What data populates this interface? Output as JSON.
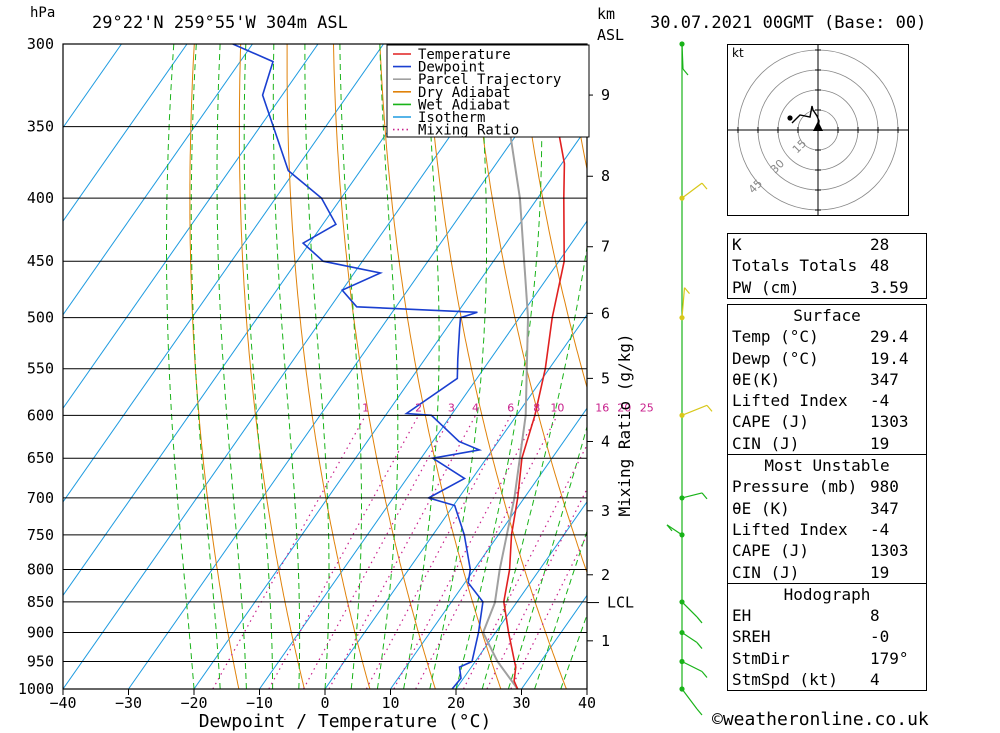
{
  "header": {
    "pressure_unit": "hPa",
    "location": "29°22'N 259°55'W 304m ASL",
    "height_unit_km": "km",
    "height_unit_asl": "ASL",
    "datetime": "30.07.2021 00GMT (Base: 00)"
  },
  "chart_data": {
    "type": "line",
    "subtype": "skew-T log-P",
    "xlabel": "Dewpoint / Temperature (°C)",
    "ylabel_right": "Mixing Ratio (g/kg)",
    "x_ticks": [
      -40,
      -30,
      -20,
      -10,
      0,
      10,
      20,
      30,
      40
    ],
    "y_ticks": [
      300,
      350,
      400,
      450,
      500,
      550,
      600,
      650,
      700,
      750,
      800,
      850,
      900,
      950,
      1000
    ],
    "xlim": [
      -40,
      40
    ],
    "ylim": [
      1000,
      300
    ],
    "y_scale": "log",
    "km_ticks": [
      {
        "label": "1",
        "p": 914
      },
      {
        "label": "2",
        "p": 808
      },
      {
        "label": "3",
        "p": 717
      },
      {
        "label": "4",
        "p": 630
      },
      {
        "label": "5",
        "p": 560
      },
      {
        "label": "6",
        "p": 496
      },
      {
        "label": "7",
        "p": 438
      },
      {
        "label": "8",
        "p": 384
      },
      {
        "label": "9",
        "p": 330
      }
    ],
    "lcl": {
      "label": "LCL",
      "p": 851
    },
    "mixing_ratio_labels": [
      "1",
      "2",
      "3",
      "4",
      "6",
      "8",
      "10",
      "16",
      "20",
      "25"
    ],
    "mixing_ratio_values": [
      1,
      2,
      3,
      4,
      6,
      8,
      10,
      16,
      20,
      25
    ],
    "legend": [
      "Temperature",
      "Dewpoint",
      "Parcel Trajectory",
      "Dry Adiabat",
      "Wet Adiabat",
      "Isotherm",
      "Mixing Ratio"
    ],
    "legend_position": "top-right",
    "colors": {
      "temperature": "#e02020",
      "dewpoint": "#1a3fd0",
      "parcel": "#a0a0a0",
      "dry_adiabat": "#e0820a",
      "wet_adiabat": "#19b319",
      "isotherm": "#1e9be0",
      "mixing_ratio": "#c8208c"
    },
    "series": [
      {
        "name": "Temperature",
        "points": [
          [
            1000,
            29.4
          ],
          [
            985,
            28.0
          ],
          [
            960,
            26.8
          ],
          [
            950,
            26.0
          ],
          [
            900,
            22.0
          ],
          [
            850,
            18.0
          ],
          [
            800,
            15.4
          ],
          [
            750,
            12.0
          ],
          [
            700,
            9.0
          ],
          [
            650,
            5.4
          ],
          [
            600,
            2.8
          ],
          [
            550,
            -0.6
          ],
          [
            500,
            -5.0
          ],
          [
            450,
            -9.2
          ],
          [
            400,
            -16.0
          ],
          [
            375,
            -19.6
          ],
          [
            350,
            -24.6
          ],
          [
            300,
            -35.0
          ]
        ]
      },
      {
        "name": "Dewpoint",
        "points": [
          [
            1000,
            19.4
          ],
          [
            980,
            19.6
          ],
          [
            960,
            18.2
          ],
          [
            950,
            19.5
          ],
          [
            900,
            17.4
          ],
          [
            850,
            14.8
          ],
          [
            820,
            10.5
          ],
          [
            800,
            9.4
          ],
          [
            750,
            4.8
          ],
          [
            710,
            0.2
          ],
          [
            700,
            -4.6
          ],
          [
            675,
            -1.2
          ],
          [
            650,
            -8.2
          ],
          [
            640,
            -2.0
          ],
          [
            630,
            -6.0
          ],
          [
            600,
            -13.0
          ],
          [
            598,
            -17.0
          ],
          [
            560,
            -13.0
          ],
          [
            540,
            -15.0
          ],
          [
            510,
            -18.0
          ],
          [
            500,
            -19.0
          ],
          [
            495,
            -17.0
          ],
          [
            490,
            -36.0
          ],
          [
            475,
            -40.0
          ],
          [
            460,
            -36.0
          ],
          [
            450,
            -46.0
          ],
          [
            435,
            -51.0
          ],
          [
            420,
            -48.0
          ],
          [
            400,
            -53.0
          ],
          [
            380,
            -61.0
          ],
          [
            330,
            -73.0
          ],
          [
            310,
            -75.0
          ],
          [
            300,
            -83.0
          ]
        ]
      },
      {
        "name": "Parcel Trajectory",
        "points": [
          [
            1000,
            29.4
          ],
          [
            950,
            23.4
          ],
          [
            900,
            18.1
          ],
          [
            851,
            16.7
          ],
          [
            800,
            13.9
          ],
          [
            700,
            8.5
          ],
          [
            600,
            1.4
          ],
          [
            500,
            -8.7
          ],
          [
            400,
            -22.7
          ],
          [
            350,
            -32.0
          ],
          [
            300,
            -43.5
          ]
        ]
      }
    ],
    "hodograph": {
      "unit": "kt",
      "ring_labels": [
        "15",
        "30",
        "45"
      ],
      "points": [
        [
          0,
          0
        ],
        [
          0.5,
          4.5
        ],
        [
          -0.5,
          7
        ],
        [
          -2.5,
          10
        ],
        [
          -3,
          12
        ],
        [
          -4,
          6.5
        ],
        [
          -9,
          7.5
        ],
        [
          -13,
          3.5
        ]
      ]
    },
    "wind_profile": [
      {
        "p": 300,
        "color": "#19b319",
        "u": 0.2,
        "v": -5
      },
      {
        "p": 400,
        "color": "#d8c81a",
        "u": 4,
        "v": 3
      },
      {
        "p": 500,
        "color": "#d8c81a",
        "u": 0.5,
        "v": 6
      },
      {
        "p": 600,
        "color": "#d8c81a",
        "u": 5,
        "v": 2
      },
      {
        "p": 700,
        "color": "#19b319",
        "u": 4,
        "v": 1
      },
      {
        "p": 750,
        "color": "#19b319",
        "u": -3,
        "v": 2
      },
      {
        "p": 850,
        "color": "#19b319",
        "u": 3,
        "v": -3
      },
      {
        "p": 900,
        "color": "#19b319",
        "u": 3,
        "v": -2
      },
      {
        "p": 950,
        "color": "#19b319",
        "u": 4,
        "v": -2
      },
      {
        "p": 1000,
        "color": "#19b319",
        "u": 3,
        "v": -4
      }
    ]
  },
  "indices": {
    "rows": [
      {
        "key": "K",
        "value": "28"
      },
      {
        "key": "Totals Totals",
        "value": "48"
      },
      {
        "key": "PW (cm)",
        "value": "3.59"
      }
    ]
  },
  "surface": {
    "title": "Surface",
    "rows": [
      {
        "key": "Temp (°C)",
        "value": "29.4"
      },
      {
        "key": "Dewp (°C)",
        "value": "19.4"
      },
      {
        "key": "θE(K)",
        "value": "347"
      },
      {
        "key": "Lifted Index",
        "value": "-4"
      },
      {
        "key": "CAPE (J)",
        "value": "1303"
      },
      {
        "key": "CIN (J)",
        "value": "19"
      }
    ]
  },
  "most_unstable": {
    "title": "Most Unstable",
    "rows": [
      {
        "key": "Pressure (mb)",
        "value": "980"
      },
      {
        "key": "θE (K)",
        "value": "347"
      },
      {
        "key": "Lifted Index",
        "value": "-4"
      },
      {
        "key": "CAPE (J)",
        "value": "1303"
      },
      {
        "key": "CIN (J)",
        "value": "19"
      }
    ]
  },
  "hodograph_table": {
    "title": "Hodograph",
    "rows": [
      {
        "key": "EH",
        "value": "8"
      },
      {
        "key": "SREH",
        "value": "-0"
      },
      {
        "key": "StmDir",
        "value": "179°"
      },
      {
        "key": "StmSpd (kt)",
        "value": "4"
      }
    ]
  },
  "footer": "©weatheronline.co.uk"
}
